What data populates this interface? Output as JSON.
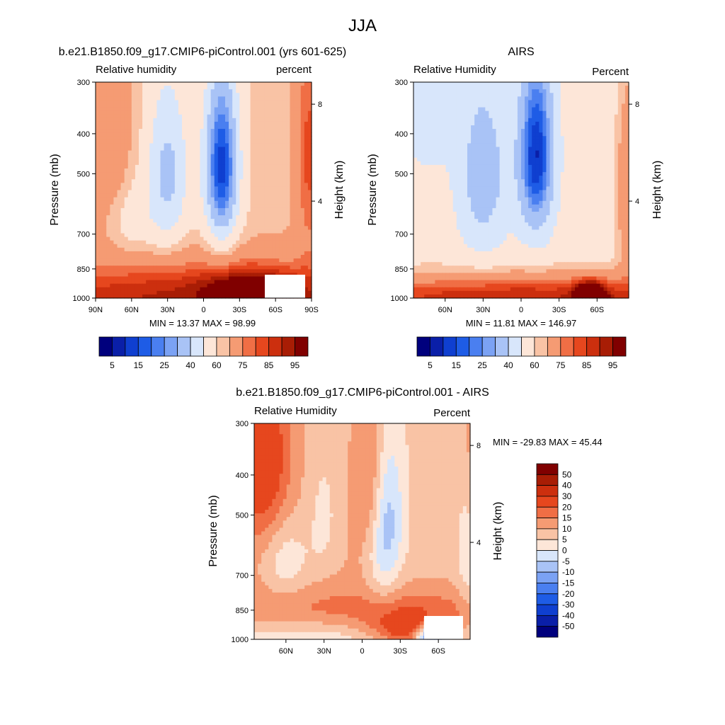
{
  "page_title": "JJA",
  "chart_data": [
    {
      "type": "heatmap",
      "title": "b.e21.B1850.f09_g17.CMIP6-piControl.001 (yrs 601-625)",
      "left_string": "Relative humidity",
      "right_string": "percent",
      "ylabel": "Pressure (mb)",
      "right_axis_label": "Height (km)",
      "y_ticks": [
        "300",
        "400",
        "500",
        "700",
        "850",
        "1000"
      ],
      "right_ticks": [
        "8",
        "4"
      ],
      "x_ticks": [
        "90N",
        "60N",
        "30N",
        "0",
        "30S",
        "60S",
        "90S"
      ],
      "stats": "MIN =  13.37  MAX =  98.99",
      "zlim": [
        13.37,
        98.99
      ],
      "colorbar": {
        "orientation": "horizontal",
        "levels": [
          5,
          10,
          15,
          20,
          25,
          30,
          40,
          50,
          60,
          65,
          75,
          80,
          85,
          90,
          95
        ],
        "labels": [
          "5",
          "15",
          "25",
          "40",
          "60",
          "75",
          "85",
          "95"
        ]
      },
      "field_description": "dry subtropical minima near 30N (~40%) and 15-20S (~10-20%); moist 850-1000 mb and high latitudes (85-99%)"
    },
    {
      "type": "heatmap",
      "title": "AIRS",
      "left_string": "Relative Humidity",
      "right_string": "Percent",
      "ylabel": "Pressure (mb)",
      "right_axis_label": "Height (km)",
      "y_ticks": [
        "300",
        "400",
        "500",
        "700",
        "850",
        "1000"
      ],
      "right_ticks": [
        "8",
        "4"
      ],
      "x_ticks": [
        "60N",
        "30N",
        "0",
        "30S",
        "60S"
      ],
      "stats": "MIN =  11.81  MAX = 146.97",
      "zlim": [
        11.81,
        146.97
      ],
      "colorbar": {
        "orientation": "horizontal",
        "levels": [
          5,
          10,
          15,
          20,
          25,
          30,
          40,
          50,
          60,
          65,
          75,
          80,
          85,
          90,
          95
        ],
        "labels": [
          "5",
          "15",
          "25",
          "40",
          "60",
          "75",
          "85",
          "95"
        ]
      }
    },
    {
      "type": "heatmap",
      "title": "b.e21.B1850.f09_g17.CMIP6-piControl.001 - AIRS",
      "left_string": "Relative Humidity",
      "right_string": "Percent",
      "ylabel": "Pressure (mb)",
      "right_axis_label": "Height (km)",
      "y_ticks": [
        "300",
        "400",
        "500",
        "700",
        "850",
        "1000"
      ],
      "right_ticks": [
        "8",
        "4"
      ],
      "x_ticks": [
        "60N",
        "30N",
        "0",
        "30S",
        "60S"
      ],
      "stats": "MIN = -29.83  MAX =  45.44",
      "zlim": [
        -29.83,
        45.44
      ],
      "colorbar": {
        "orientation": "vertical",
        "levels": [
          -50,
          -40,
          -30,
          -20,
          -15,
          -10,
          -5,
          0,
          5,
          10,
          15,
          20,
          30,
          40,
          50
        ],
        "labels": [
          "50",
          "40",
          "30",
          "20",
          "15",
          "10",
          "5",
          "0",
          "-5",
          "-10",
          "-15",
          "-20",
          "-30",
          "-40",
          "-50"
        ]
      }
    }
  ],
  "palette": [
    "#00007d",
    "#0a1fa8",
    "#0f3fd0",
    "#1e5ce6",
    "#4a7ff0",
    "#7ba2f4",
    "#a9c3f6",
    "#d8e6fb",
    "#fde6d8",
    "#f9c3a5",
    "#f59b73",
    "#f06e45",
    "#e6471e",
    "#cc2f0e",
    "#a81d05",
    "#800000"
  ]
}
